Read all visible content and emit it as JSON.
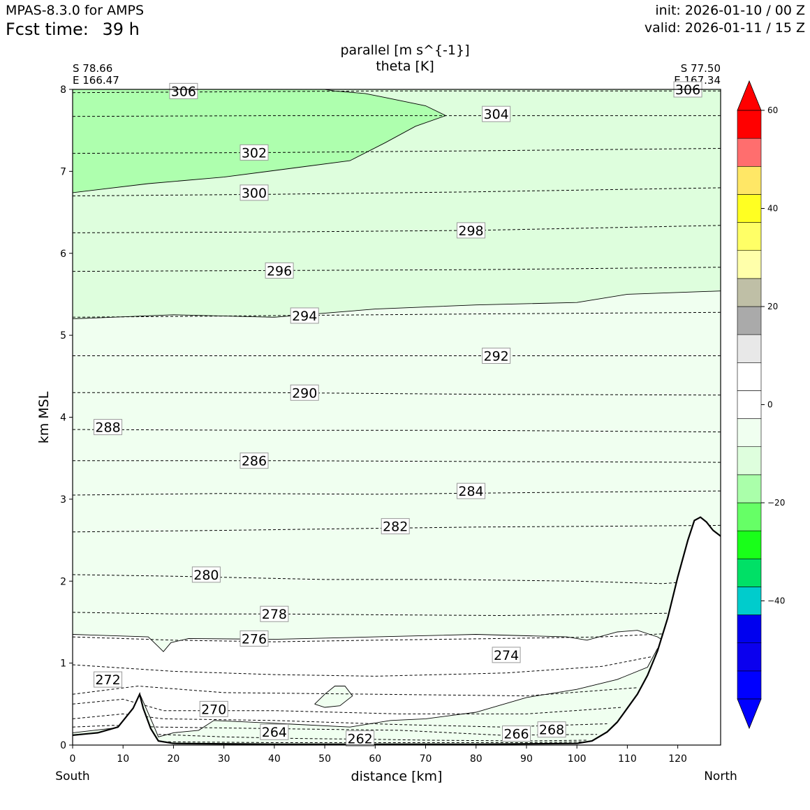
{
  "header": {
    "model": "MPAS-8.3.0 for AMPS",
    "fcst_label": "Fcst time:",
    "fcst_value": "39 h",
    "init": "init: 2026-01-10 / 00 Z",
    "valid": "valid: 2026-01-11 / 15 Z"
  },
  "chart_data": {
    "type": "contour",
    "title": [
      "parallel [m s^{-1}]",
      "theta [K]"
    ],
    "xlabel": "distance [km]",
    "ylabel": "km MSL",
    "xlim": [
      0,
      128.5
    ],
    "ylim": [
      0,
      8
    ],
    "xticks": [
      0,
      10,
      20,
      30,
      40,
      50,
      60,
      70,
      80,
      90,
      100,
      110,
      120
    ],
    "yticks": [
      0,
      1,
      2,
      3,
      4,
      5,
      6,
      7,
      8
    ],
    "start_point": {
      "lat": "S 78.66",
      "lon": "E 166.47",
      "label": "South"
    },
    "end_point": {
      "lat": "S 77.50",
      "lon": "E 167.34",
      "label": "North"
    },
    "colors": {
      "fill_light": "#f0fff0",
      "fill_mid": "#defedd",
      "fill_strong": "#aeffae",
      "terrain": "#ffffff"
    },
    "terrain": [
      [
        0,
        0.12
      ],
      [
        5,
        0.15
      ],
      [
        9,
        0.22
      ],
      [
        12,
        0.45
      ],
      [
        13.3,
        0.62
      ],
      [
        14,
        0.45
      ],
      [
        15.5,
        0.2
      ],
      [
        17,
        0.05
      ],
      [
        20,
        0.02
      ],
      [
        40,
        0.01
      ],
      [
        60,
        0.01
      ],
      [
        80,
        0.01
      ],
      [
        100,
        0.02
      ],
      [
        103,
        0.05
      ],
      [
        106,
        0.16
      ],
      [
        108,
        0.28
      ],
      [
        110,
        0.45
      ],
      [
        112,
        0.62
      ],
      [
        114,
        0.85
      ],
      [
        116,
        1.15
      ],
      [
        118,
        1.55
      ],
      [
        120,
        2.05
      ],
      [
        122,
        2.5
      ],
      [
        123.3,
        2.74
      ],
      [
        124.5,
        2.78
      ],
      [
        125.7,
        2.72
      ],
      [
        127,
        2.62
      ],
      [
        128.5,
        2.55
      ]
    ],
    "theta_contours": [
      {
        "level": 262,
        "points": [
          [
            17,
            0.04
          ],
          [
            40,
            0.03
          ],
          [
            60,
            0.03
          ],
          [
            90,
            0.03
          ],
          [
            103,
            0.04
          ]
        ],
        "label": [
          57,
          0.08
        ]
      },
      {
        "level": 264,
        "points": [
          [
            17,
            0.13
          ],
          [
            30,
            0.1
          ],
          [
            45,
            0.08
          ],
          [
            60,
            0.07
          ],
          [
            70,
            0.06
          ],
          [
            90,
            0.05
          ],
          [
            102,
            0.06
          ]
        ],
        "label": [
          40,
          0.16
        ]
      },
      {
        "level": 266,
        "points": [
          [
            0,
            0.22
          ],
          [
            8,
            0.24
          ],
          [
            17,
            0.22
          ],
          [
            40,
            0.2
          ],
          [
            65,
            0.18
          ],
          [
            85,
            0.12
          ],
          [
            104,
            0.13
          ]
        ],
        "label": [
          88,
          0.14
        ]
      },
      {
        "level": 268,
        "points": [
          [
            0,
            0.32
          ],
          [
            10,
            0.38
          ],
          [
            18,
            0.32
          ],
          [
            40,
            0.3
          ],
          [
            65,
            0.25
          ],
          [
            85,
            0.22
          ],
          [
            106,
            0.26
          ]
        ],
        "label": [
          95,
          0.19
        ]
      },
      {
        "level": 270,
        "points": [
          [
            0,
            0.5
          ],
          [
            10,
            0.56
          ],
          [
            18,
            0.42
          ],
          [
            40,
            0.42
          ],
          [
            65,
            0.38
          ],
          [
            90,
            0.38
          ],
          [
            109,
            0.46
          ]
        ],
        "label": [
          28,
          0.44
        ]
      },
      {
        "level": 272,
        "points": [
          [
            0,
            0.62
          ],
          [
            13,
            0.72
          ],
          [
            30,
            0.64
          ],
          [
            60,
            0.62
          ],
          [
            90,
            0.6
          ],
          [
            112,
            0.7
          ]
        ],
        "label": [
          7,
          0.8
        ]
      },
      {
        "level": 274,
        "points": [
          [
            0,
            0.98
          ],
          [
            20,
            0.9
          ],
          [
            40,
            0.86
          ],
          [
            60,
            0.84
          ],
          [
            86,
            0.88
          ],
          [
            105,
            0.96
          ],
          [
            115,
            1.08
          ]
        ],
        "label": [
          86,
          1.1
        ]
      },
      {
        "level": 276,
        "points": [
          [
            0,
            1.32
          ],
          [
            20,
            1.28
          ],
          [
            40,
            1.26
          ],
          [
            60,
            1.28
          ],
          [
            85,
            1.3
          ],
          [
            105,
            1.32
          ],
          [
            118,
            1.36
          ]
        ],
        "label": [
          36,
          1.3
        ]
      },
      {
        "level": 278,
        "points": [
          [
            0,
            1.62
          ],
          [
            20,
            1.6
          ],
          [
            40,
            1.6
          ],
          [
            60,
            1.59
          ],
          [
            85,
            1.58
          ],
          [
            110,
            1.6
          ],
          [
            128.5,
            1.62
          ]
        ],
        "label": [
          40,
          1.6
        ]
      },
      {
        "level": 280,
        "points": [
          [
            0,
            2.08
          ],
          [
            20,
            2.06
          ],
          [
            50,
            2.02
          ],
          [
            75,
            2.02
          ],
          [
            100,
            2.0
          ],
          [
            117,
            1.97
          ],
          [
            128.5,
            2.02
          ]
        ],
        "label": [
          26.5,
          2.08
        ]
      },
      {
        "level": 282,
        "points": [
          [
            0,
            2.6
          ],
          [
            30,
            2.62
          ],
          [
            55,
            2.64
          ],
          [
            80,
            2.66
          ],
          [
            105,
            2.67
          ],
          [
            128.5,
            2.68
          ]
        ],
        "label": [
          64,
          2.67
        ]
      },
      {
        "level": 284,
        "points": [
          [
            0,
            3.05
          ],
          [
            30,
            3.07
          ],
          [
            60,
            3.06
          ],
          [
            90,
            3.08
          ],
          [
            128.5,
            3.1
          ]
        ],
        "label": [
          79,
          3.1
        ]
      },
      {
        "level": 286,
        "points": [
          [
            0,
            3.47
          ],
          [
            40,
            3.47
          ],
          [
            80,
            3.46
          ],
          [
            128.5,
            3.45
          ]
        ],
        "label": [
          36,
          3.47
        ]
      },
      {
        "level": 288,
        "points": [
          [
            0,
            3.85
          ],
          [
            40,
            3.84
          ],
          [
            80,
            3.84
          ],
          [
            128.5,
            3.82
          ]
        ],
        "label": [
          7,
          3.88
        ]
      },
      {
        "level": 290,
        "points": [
          [
            0,
            4.3
          ],
          [
            40,
            4.3
          ],
          [
            80,
            4.28
          ],
          [
            128.5,
            4.27
          ]
        ],
        "label": [
          46,
          4.3
        ]
      },
      {
        "level": 292,
        "points": [
          [
            0,
            4.75
          ],
          [
            40,
            4.75
          ],
          [
            80,
            4.75
          ],
          [
            128.5,
            4.75
          ]
        ],
        "label": [
          84,
          4.75
        ]
      },
      {
        "level": 294,
        "points": [
          [
            0,
            5.22
          ],
          [
            40,
            5.24
          ],
          [
            80,
            5.26
          ],
          [
            128.5,
            5.28
          ]
        ],
        "label": [
          46,
          5.24
        ]
      },
      {
        "level": 296,
        "points": [
          [
            0,
            5.78
          ],
          [
            40,
            5.79
          ],
          [
            80,
            5.8
          ],
          [
            128.5,
            5.83
          ]
        ],
        "label": [
          41,
          5.79
        ]
      },
      {
        "level": 298,
        "points": [
          [
            0,
            6.25
          ],
          [
            40,
            6.26
          ],
          [
            80,
            6.28
          ],
          [
            128.5,
            6.34
          ]
        ],
        "label": [
          79,
          6.28
        ]
      },
      {
        "level": 300,
        "points": [
          [
            0,
            6.7
          ],
          [
            40,
            6.72
          ],
          [
            80,
            6.75
          ],
          [
            128.5,
            6.8
          ]
        ],
        "label": [
          36,
          6.74
        ]
      },
      {
        "level": 302,
        "points": [
          [
            0,
            7.22
          ],
          [
            40,
            7.23
          ],
          [
            80,
            7.25
          ],
          [
            128.5,
            7.28
          ]
        ],
        "label": [
          36,
          7.23
        ]
      },
      {
        "level": 304,
        "points": [
          [
            0,
            7.67
          ],
          [
            40,
            7.68
          ],
          [
            80,
            7.68
          ],
          [
            128.5,
            7.68
          ]
        ],
        "label": [
          84,
          7.7
        ]
      },
      {
        "level": 306,
        "points": [
          [
            0,
            7.96
          ],
          [
            60,
            7.98
          ],
          [
            128.5,
            7.98
          ]
        ],
        "label": [
          22,
          7.98
        ]
      },
      {
        "level": 306,
        "points": [],
        "label": [
          122,
          8.0
        ]
      }
    ],
    "parallel_contours": [
      {
        "level": -10,
        "points": [
          [
            0,
            1.35
          ],
          [
            15,
            1.32
          ],
          [
            17,
            1.2
          ],
          [
            18,
            1.14
          ],
          [
            19.5,
            1.25
          ],
          [
            23,
            1.3
          ],
          [
            40,
            1.29
          ],
          [
            60,
            1.32
          ],
          [
            80,
            1.35
          ],
          [
            98,
            1.32
          ],
          [
            102,
            1.28
          ],
          [
            108,
            1.38
          ],
          [
            112,
            1.4
          ],
          [
            116,
            1.32
          ],
          [
            117,
            1.28
          ],
          [
            118,
            1.35
          ]
        ]
      },
      {
        "level": -15,
        "points": [
          [
            0,
            5.2
          ],
          [
            20,
            5.25
          ],
          [
            40,
            5.22
          ],
          [
            60,
            5.32
          ],
          [
            80,
            5.37
          ],
          [
            100,
            5.4
          ],
          [
            110,
            5.5
          ],
          [
            128.5,
            5.54
          ]
        ]
      },
      {
        "level": -20,
        "points": [
          [
            0,
            6.74
          ],
          [
            15,
            6.85
          ],
          [
            30,
            6.93
          ],
          [
            45,
            7.05
          ],
          [
            55,
            7.13
          ],
          [
            62,
            7.35
          ],
          [
            68,
            7.55
          ],
          [
            74,
            7.68
          ],
          [
            70,
            7.8
          ],
          [
            62,
            7.9
          ],
          [
            58,
            7.95
          ],
          [
            52,
            7.98
          ],
          [
            50,
            8.0
          ]
        ]
      },
      {
        "level": -5,
        "points": [
          [
            48,
            0.5
          ],
          [
            50,
            0.62
          ],
          [
            52,
            0.72
          ],
          [
            54,
            0.72
          ],
          [
            55.5,
            0.6
          ],
          [
            53,
            0.48
          ],
          [
            50,
            0.46
          ],
          [
            48,
            0.5
          ]
        ]
      },
      {
        "level": -5,
        "points": [
          [
            0,
            0.15
          ],
          [
            10,
            0.22
          ],
          [
            13.5,
            0.6
          ],
          [
            16,
            0.25
          ],
          [
            17,
            0.1
          ],
          [
            20,
            0.15
          ],
          [
            25,
            0.18
          ],
          [
            28,
            0.3
          ],
          [
            35,
            0.28
          ],
          [
            42,
            0.26
          ],
          [
            55,
            0.22
          ],
          [
            63,
            0.3
          ],
          [
            70,
            0.32
          ],
          [
            80,
            0.4
          ],
          [
            90,
            0.58
          ],
          [
            100,
            0.68
          ],
          [
            108,
            0.8
          ],
          [
            114,
            0.95
          ],
          [
            116,
            1.18
          ]
        ]
      }
    ],
    "colorbar": {
      "ticks": [
        "60",
        "40",
        "20",
        "0",
        "−20",
        "−40"
      ],
      "tick_values": [
        60,
        40,
        20,
        0,
        -20,
        -40
      ],
      "range": [
        -60,
        60
      ],
      "step": 5.71,
      "colors": [
        "#0000ff",
        "#0b00ee",
        "#0000ef",
        "#00cccc",
        "#00e066",
        "#19ff19",
        "#66ff66",
        "#aaffaa",
        "#defedd",
        "#f0fff0",
        "#ffffff",
        "#ffffff",
        "#e8e8e8",
        "#aaaaaa",
        "#bfbfa6",
        "#ffffaa",
        "#ffff66",
        "#ffff22",
        "#ffe766",
        "#ff6e6e",
        "#ff0000"
      ]
    }
  }
}
